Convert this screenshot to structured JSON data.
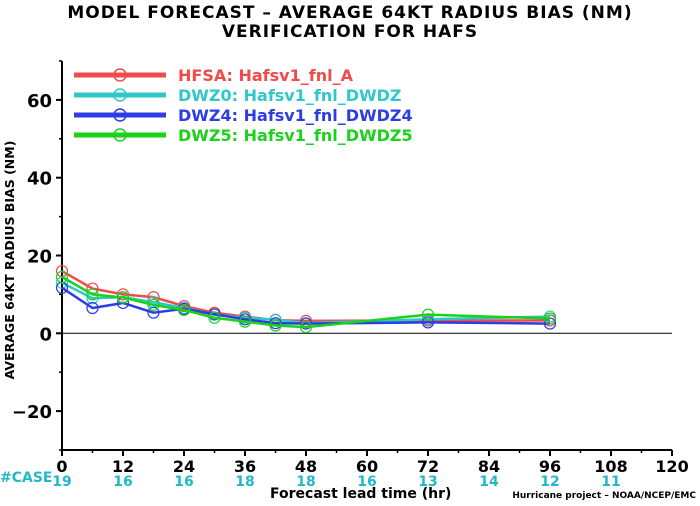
{
  "title_line1": "MODEL FORECAST – AVERAGE 64KT RADIUS BIAS (NM)",
  "title_line2": "VERIFICATION FOR HAFS",
  "ylabel": "AVERAGE 64KT RADIUS BIAS (NM)",
  "xlabel": "Forecast lead time (hr)",
  "credit": "Hurricane project – NOAA/NCEP/EMC",
  "case_label": "#CASE",
  "colors": {
    "HFSA": "#f04a4a",
    "DWZ0": "#2ec8c8",
    "DWZ4": "#2c3ce6",
    "DWZ5": "#1ad21a",
    "case": "#22b8c8"
  },
  "chart_data": {
    "type": "line",
    "xlim": [
      0,
      120
    ],
    "ylim": [
      -30,
      70
    ],
    "xticks": [
      0,
      12,
      24,
      36,
      48,
      60,
      72,
      84,
      96,
      108,
      120
    ],
    "yticks": [
      -20,
      0,
      20,
      40,
      60
    ],
    "grid": false,
    "legend_position": "top-left",
    "zero_line": true,
    "cases": {
      "x": [
        0,
        12,
        24,
        36,
        48,
        60,
        72,
        84,
        96,
        108
      ],
      "labels": [
        "19",
        "16",
        "16",
        "18",
        "18",
        "16",
        "13",
        "14",
        "12",
        "11"
      ]
    },
    "series": [
      {
        "key": "HFSA",
        "name": "HFSA: Hafsv1_fnl_A",
        "x": [
          0,
          6,
          12,
          18,
          24,
          30,
          36,
          42,
          48,
          72,
          96
        ],
        "y": [
          16,
          11.5,
          10,
          9.3,
          7,
          5.3,
          4.3,
          3.4,
          3.2,
          3.3,
          3.3
        ]
      },
      {
        "key": "DWZ0",
        "name": "DWZ0: Hafsv1_fnl_DWDZ",
        "x": [
          0,
          6,
          12,
          18,
          24,
          30,
          36,
          42,
          48,
          72,
          96
        ],
        "y": [
          13,
          9,
          9.3,
          8,
          6.5,
          4.8,
          4,
          3.5,
          2.6,
          3.6,
          4.3
        ]
      },
      {
        "key": "DWZ4",
        "name": "DWZ4: Hafsv1_fnl_DWDZ4",
        "x": [
          0,
          6,
          12,
          18,
          24,
          30,
          36,
          42,
          48,
          72,
          96
        ],
        "y": [
          11.7,
          6.5,
          7.8,
          5.3,
          6.3,
          4.9,
          3.6,
          2.6,
          2.5,
          2.8,
          2.5
        ]
      },
      {
        "key": "DWZ5",
        "name": "DWZ5: Hafsv1_fnl_DWDZ5",
        "x": [
          0,
          6,
          12,
          18,
          24,
          30,
          36,
          42,
          48,
          72,
          96
        ],
        "y": [
          14.5,
          10,
          9.2,
          7.3,
          6,
          4,
          3,
          2,
          1.6,
          4.8,
          3.8
        ]
      }
    ]
  }
}
